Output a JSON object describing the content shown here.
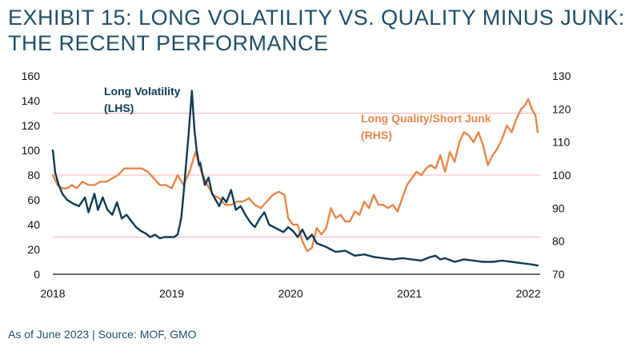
{
  "header": {
    "title_line1": "EXHIBIT 15: LONG VOLATILITY VS. QUALITY MINUS JUNK:",
    "title_line2": "THE RECENT PERFORMANCE"
  },
  "footer": {
    "source": "As of June 2023 | Source: MOF, GMO"
  },
  "colors": {
    "lhs_series": "#0f3a52",
    "rhs_series": "#e8864a",
    "gridline": "#f4b5b5",
    "axis": "#111111",
    "title": "#1f4e66"
  },
  "chart_data": {
    "type": "line",
    "title": "",
    "xlabel": "",
    "ylabel_left": "",
    "ylabel_right": "",
    "x_ticks": [
      "2018",
      "2019",
      "2020",
      "2021",
      "2022"
    ],
    "x_tick_values": [
      2018,
      2019,
      2020,
      2021,
      2022
    ],
    "xlim": [
      2018,
      2022.1
    ],
    "y_left": {
      "lim": [
        0,
        160
      ],
      "ticks": [
        "0",
        "20",
        "40",
        "60",
        "80",
        "100",
        "120",
        "140",
        "160"
      ],
      "tick_values": [
        0,
        20,
        40,
        60,
        80,
        100,
        120,
        140,
        160
      ]
    },
    "y_right": {
      "lim": [
        70,
        130
      ],
      "ticks": [
        "70",
        "80",
        "90",
        "100",
        "110",
        "120",
        "130"
      ],
      "tick_values": [
        70,
        80,
        90,
        100,
        110,
        120,
        130
      ]
    },
    "grid": "horizontal gridlines at 30, 80 and 130 on the left axis",
    "series": [
      {
        "name_line1": "Long Volatility",
        "name_line2": "(LHS)",
        "axis": "left",
        "x": [
          2018.0,
          2018.02,
          2018.05,
          2018.08,
          2018.12,
          2018.17,
          2018.22,
          2018.27,
          2018.3,
          2018.35,
          2018.38,
          2018.42,
          2018.46,
          2018.5,
          2018.54,
          2018.58,
          2018.62,
          2018.66,
          2018.7,
          2018.74,
          2018.78,
          2018.82,
          2018.86,
          2018.9,
          2018.94,
          2018.98,
          2019.02,
          2019.05,
          2019.08,
          2019.1,
          2019.14,
          2019.17,
          2019.19,
          2019.21,
          2019.22,
          2019.23,
          2019.24,
          2019.26,
          2019.28,
          2019.31,
          2019.34,
          2019.37,
          2019.4,
          2019.43,
          2019.46,
          2019.5,
          2019.54,
          2019.58,
          2019.62,
          2019.66,
          2019.7,
          2019.74,
          2019.78,
          2019.82,
          2019.86,
          2019.9,
          2019.94,
          2019.98,
          2020.02,
          2020.06,
          2020.1,
          2020.14,
          2020.18,
          2020.22,
          2020.3,
          2020.38,
          2020.46,
          2020.54,
          2020.62,
          2020.7,
          2020.78,
          2020.86,
          2020.94,
          2021.02,
          2021.1,
          2021.18,
          2021.22,
          2021.26,
          2021.3,
          2021.38,
          2021.46,
          2021.54,
          2021.62,
          2021.7,
          2021.78,
          2021.86,
          2021.94,
          2022.02,
          2022.08
        ],
        "y": [
          100,
          82,
          72,
          65,
          60,
          57,
          55,
          62,
          50,
          65,
          52,
          62,
          52,
          48,
          58,
          45,
          48,
          43,
          38,
          35,
          33,
          30,
          32,
          29,
          30,
          30,
          30,
          32,
          45,
          65,
          110,
          148,
          118,
          100,
          95,
          88,
          90,
          80,
          72,
          78,
          65,
          60,
          55,
          62,
          58,
          68,
          52,
          55,
          48,
          42,
          38,
          45,
          50,
          40,
          38,
          36,
          34,
          38,
          35,
          30,
          36,
          28,
          32,
          25,
          22,
          18,
          19,
          15,
          16,
          14,
          13,
          12,
          13,
          12,
          11,
          14,
          15,
          12,
          13,
          10,
          12,
          11,
          10,
          10,
          11,
          10,
          9,
          8,
          7
        ]
      },
      {
        "name_line1": "Long Quality/Short Junk",
        "name_line2": "(RHS)",
        "axis": "right",
        "x": [
          2018.0,
          2018.04,
          2018.08,
          2018.12,
          2018.16,
          2018.2,
          2018.25,
          2018.3,
          2018.35,
          2018.4,
          2018.45,
          2018.5,
          2018.55,
          2018.6,
          2018.65,
          2018.7,
          2018.75,
          2018.8,
          2018.85,
          2018.9,
          2018.95,
          2019.0,
          2019.05,
          2019.1,
          2019.15,
          2019.2,
          2019.25,
          2019.3,
          2019.35,
          2019.4,
          2019.45,
          2019.5,
          2019.55,
          2019.6,
          2019.65,
          2019.7,
          2019.75,
          2019.8,
          2019.85,
          2019.9,
          2019.95,
          2019.98,
          2020.02,
          2020.06,
          2020.1,
          2020.14,
          2020.18,
          2020.22,
          2020.26,
          2020.3,
          2020.34,
          2020.38,
          2020.42,
          2020.46,
          2020.5,
          2020.54,
          2020.58,
          2020.62,
          2020.66,
          2020.7,
          2020.74,
          2020.78,
          2020.82,
          2020.86,
          2020.9,
          2020.94,
          2020.98,
          2021.02,
          2021.06,
          2021.1,
          2021.14,
          2021.18,
          2021.22,
          2021.26,
          2021.3,
          2021.34,
          2021.38,
          2021.42,
          2021.46,
          2021.5,
          2021.54,
          2021.58,
          2021.62,
          2021.66,
          2021.7,
          2021.74,
          2021.78,
          2021.82,
          2021.86,
          2021.9,
          2021.94,
          2021.97,
          2022.0,
          2022.03,
          2022.06,
          2022.08
        ],
        "y": [
          100,
          97,
          96,
          96,
          97,
          96,
          98,
          97,
          97,
          98,
          98,
          99,
          100,
          102,
          102,
          102,
          102,
          101,
          99,
          97,
          97,
          96,
          100,
          97,
          101,
          107,
          101,
          97,
          94,
          93,
          91,
          91,
          92,
          92,
          93,
          91,
          90,
          92,
          94,
          95,
          94,
          87,
          85,
          85,
          80,
          77,
          78,
          84,
          82,
          84,
          90,
          87,
          88,
          86,
          86,
          89,
          88,
          92,
          90,
          94,
          91,
          91,
          90,
          91,
          89,
          93,
          97,
          99,
          101,
          100,
          102,
          103,
          102,
          106,
          101,
          107,
          104,
          110,
          113,
          112,
          110,
          113,
          109,
          103,
          106,
          108,
          111,
          115,
          113,
          117,
          120,
          121,
          123,
          120,
          118,
          113
        ]
      }
    ]
  }
}
